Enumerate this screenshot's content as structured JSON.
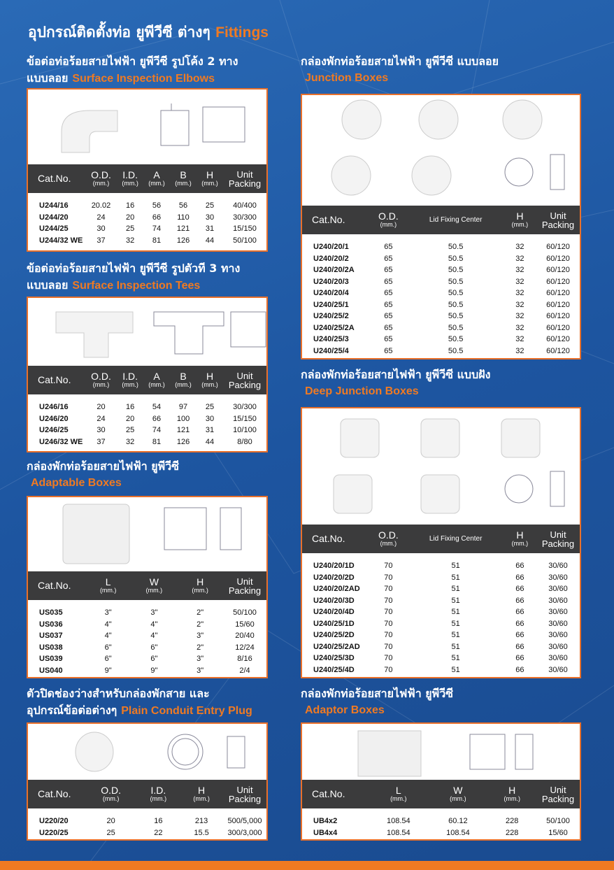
{
  "header": {
    "title": "อุปกรณ์ติดตั้งท่อ ยูพีวีซี ต่างๆ",
    "subtitle": "Fittings"
  },
  "sections": [
    {
      "title": [
        "ข้อต่อท่อร้อยสายไฟฟ้า ยูพีวีซี รูปโค้ง 2 ทาง",
        "แบบลอย"
      ],
      "subtitle": "Surface Inspection Elbows",
      "columns": [
        {
          "label": "Cat.No."
        },
        {
          "label": "O.D.",
          "unit": "(mm.)"
        },
        {
          "label": "I.D.",
          "unit": "(mm.)"
        },
        {
          "label": "A",
          "unit": "(mm.)"
        },
        {
          "label": "B",
          "unit": "(mm.)"
        },
        {
          "label": "H",
          "unit": "(mm.)"
        },
        {
          "label": "Unit Packing"
        }
      ],
      "rows": [
        [
          "U244/16",
          20.02,
          16,
          56,
          56,
          25,
          "40/400"
        ],
        [
          "U244/20",
          24,
          20,
          66,
          110,
          30,
          "30/300"
        ],
        [
          "U244/25",
          30,
          25,
          74,
          121,
          31,
          "15/150"
        ],
        [
          "U244/32 WE",
          37,
          32,
          81,
          126,
          44,
          "50/100"
        ]
      ]
    },
    {
      "title": [
        "ข้อต่อท่อร้อยสายไฟฟ้า ยูพีวีซี รูปตัวที 3 ทาง",
        "แบบลอย"
      ],
      "subtitle": "Surface Inspection Tees",
      "columns": [
        {
          "label": "Cat.No."
        },
        {
          "label": "O.D.",
          "unit": "(mm.)"
        },
        {
          "label": "I.D.",
          "unit": "(mm.)"
        },
        {
          "label": "A",
          "unit": "(mm.)"
        },
        {
          "label": "B",
          "unit": "(mm.)"
        },
        {
          "label": "H",
          "unit": "(mm.)"
        },
        {
          "label": "Unit Packing"
        }
      ],
      "rows": [
        [
          "U246/16",
          20,
          16,
          54,
          97,
          25,
          "30/300"
        ],
        [
          "U246/20",
          24,
          20,
          66,
          100,
          30,
          "15/150"
        ],
        [
          "U246/25",
          30,
          25,
          74,
          121,
          31,
          "10/100"
        ],
        [
          "U246/32 WE",
          37,
          32,
          81,
          126,
          44,
          "8/80"
        ]
      ]
    },
    {
      "title": [
        "กล่องพักท่อร้อยสายไฟฟ้า ยูพีวีซี"
      ],
      "subtitle": "Adaptable Boxes",
      "columns": [
        {
          "label": "Cat.No."
        },
        {
          "label": "L",
          "unit": "(mm.)"
        },
        {
          "label": "W",
          "unit": "(mm.)"
        },
        {
          "label": "H",
          "unit": "(mm.)"
        },
        {
          "label": "Unit Packing"
        }
      ],
      "rows": [
        [
          "US035",
          "3\"",
          "3\"",
          "2\"",
          "50/100"
        ],
        [
          "US036",
          "4\"",
          "4\"",
          "2\"",
          "15/60"
        ],
        [
          "US037",
          "4\"",
          "4\"",
          "3\"",
          "20/40"
        ],
        [
          "US038",
          "6\"",
          "6\"",
          "2\"",
          "12/24"
        ],
        [
          "US039",
          "6\"",
          "6\"",
          "3\"",
          "8/16"
        ],
        [
          "US040",
          "9\"",
          "9\"",
          "3\"",
          "2/4"
        ]
      ]
    },
    {
      "title": [
        "ตัวปิดช่องว่างสำหรับกล่องพักสาย และ",
        "อุปกรณ์ข้อต่อต่างๆ"
      ],
      "subtitle": "Plain Conduit Entry Plug",
      "columns": [
        {
          "label": "Cat.No."
        },
        {
          "label": "O.D.",
          "unit": "(mm.)"
        },
        {
          "label": "I.D.",
          "unit": "(mm.)"
        },
        {
          "label": "H",
          "unit": "(mm.)"
        },
        {
          "label": "Unit Packing"
        }
      ],
      "rows": [
        [
          "U220/20",
          20,
          16,
          213,
          "500/5,000"
        ],
        [
          "U220/25",
          25,
          22,
          15.5,
          "300/3,000"
        ]
      ]
    },
    {
      "title": [
        "กล่องพักท่อร้อยสายไฟฟ้า ยูพีวีซี แบบลอย"
      ],
      "subtitle": "Junction Boxes",
      "columns": [
        {
          "label": "Cat.No."
        },
        {
          "label": "O.D.",
          "unit": "(mm.)"
        },
        {
          "label": "Lid Fixing Center"
        },
        {
          "label": "H",
          "unit": "(mm.)"
        },
        {
          "label": "Unit Packing"
        }
      ],
      "rows": [
        [
          "U240/20/1",
          65,
          50.5,
          32,
          "60/120"
        ],
        [
          "U240/20/2",
          65,
          50.5,
          32,
          "60/120"
        ],
        [
          "U240/20/2A",
          65,
          50.5,
          32,
          "60/120"
        ],
        [
          "U240/20/3",
          65,
          50.5,
          32,
          "60/120"
        ],
        [
          "U240/20/4",
          65,
          50.5,
          32,
          "60/120"
        ],
        [
          "U240/25/1",
          65,
          50.5,
          32,
          "60/120"
        ],
        [
          "U240/25/2",
          65,
          50.5,
          32,
          "60/120"
        ],
        [
          "U240/25/2A",
          65,
          50.5,
          32,
          "60/120"
        ],
        [
          "U240/25/3",
          65,
          50.5,
          32,
          "60/120"
        ],
        [
          "U240/25/4",
          65,
          50.5,
          32,
          "60/120"
        ]
      ]
    },
    {
      "title": [
        "กล่องพักท่อร้อยสายไฟฟ้า ยูพีวีซี แบบฝัง"
      ],
      "subtitle": "Deep Junction Boxes",
      "columns": [
        {
          "label": "Cat.No."
        },
        {
          "label": "O.D.",
          "unit": "(mm.)"
        },
        {
          "label": "Lid Fixing Center"
        },
        {
          "label": "H",
          "unit": "(mm.)"
        },
        {
          "label": "Unit Packing"
        }
      ],
      "rows": [
        [
          "U240/20/1D",
          70,
          51,
          66,
          "30/60"
        ],
        [
          "U240/20/2D",
          70,
          51,
          66,
          "30/60"
        ],
        [
          "U240/20/2AD",
          70,
          51,
          66,
          "30/60"
        ],
        [
          "U240/20/3D",
          70,
          51,
          66,
          "30/60"
        ],
        [
          "U240/20/4D",
          70,
          51,
          66,
          "30/60"
        ],
        [
          "U240/25/1D",
          70,
          51,
          66,
          "30/60"
        ],
        [
          "U240/25/2D",
          70,
          51,
          66,
          "30/60"
        ],
        [
          "U240/25/2AD",
          70,
          51,
          66,
          "30/60"
        ],
        [
          "U240/25/3D",
          70,
          51,
          66,
          "30/60"
        ],
        [
          "U240/25/4D",
          70,
          51,
          66,
          "30/60"
        ]
      ]
    },
    {
      "title": [
        "กล่องพักท่อร้อยสายไฟฟ้า ยูพีวีซี"
      ],
      "subtitle": "Adaptor Boxes",
      "columns": [
        {
          "label": "Cat.No."
        },
        {
          "label": "L",
          "unit": "(mm.)"
        },
        {
          "label": "W",
          "unit": "(mm.)"
        },
        {
          "label": "H",
          "unit": "(mm.)"
        },
        {
          "label": "Unit Packing"
        }
      ],
      "rows": [
        [
          "UB4x2",
          108.54,
          60.12,
          228,
          "50/100"
        ],
        [
          "UB4x4",
          108.54,
          108.54,
          228,
          "15/60"
        ]
      ]
    }
  ]
}
